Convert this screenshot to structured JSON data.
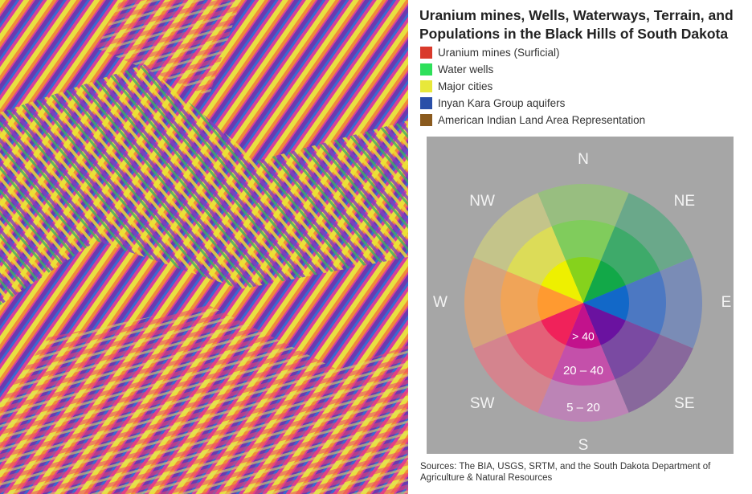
{
  "title": "Uranium mines, Wells, Waterways, Terrain, and Populations in the Black Hills of South Dakota",
  "legend": [
    {
      "label": "Uranium mines (Surficial)",
      "color": "#d93a2b"
    },
    {
      "label": "Water wells",
      "color": "#2ee05a"
    },
    {
      "label": "Major cities",
      "color": "#e8e83a"
    },
    {
      "label": "Inyan Kara Group aquifers",
      "color": "#2a4fa8"
    },
    {
      "label": "American Indian Land Area Representation",
      "color": "#8a5a1e"
    }
  ],
  "compass": {
    "directions": [
      "N",
      "NE",
      "E",
      "SE",
      "S",
      "SW",
      "W",
      "NW"
    ],
    "slope_classes": [
      "> 40",
      "20 – 40",
      "5 – 20"
    ]
  },
  "sources": "Sources: The BIA, USGS, SRTM, and the South Dakota Department of Agriculture & Natural Resources"
}
